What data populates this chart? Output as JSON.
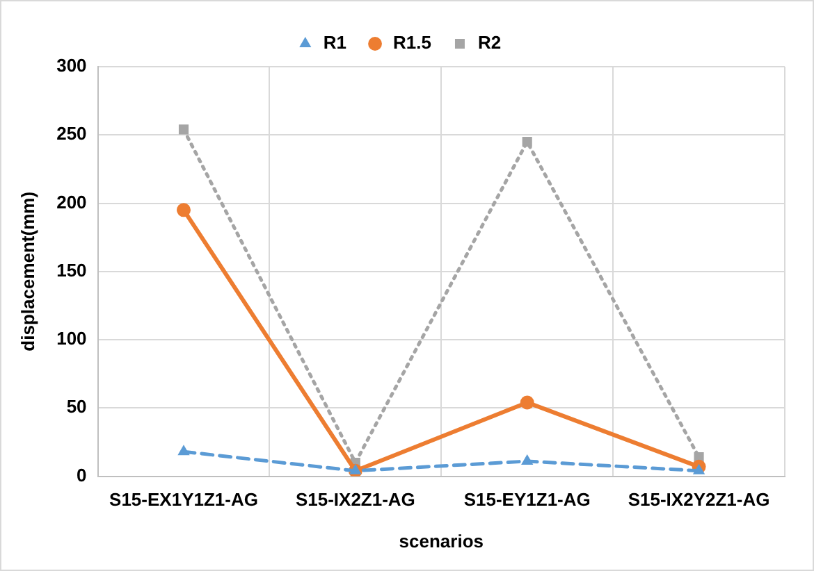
{
  "chart_data": {
    "type": "line",
    "xlabel": "scenarios",
    "ylabel": "displacement(mm)",
    "categories": [
      "S15-EX1Y1Z1-AG",
      "S15-IX2Z1-AG",
      "S15-EY1Z1-AG",
      "S15-IX2Y2Z1-AG"
    ],
    "series": [
      {
        "name": "R1",
        "color": "#5b9bd5",
        "values": [
          18,
          4,
          11,
          4
        ],
        "marker": "triangle",
        "line_style": "dashed"
      },
      {
        "name": "R1.5",
        "color": "#ed7d31",
        "values": [
          195,
          4,
          54,
          7
        ],
        "marker": "circle",
        "line_style": "solid"
      },
      {
        "name": "R2",
        "color": "#a5a5a5",
        "values": [
          254,
          10,
          245,
          14
        ],
        "marker": "square",
        "line_style": "dotted"
      }
    ],
    "ylim": [
      0,
      300
    ],
    "yticks": [
      0,
      50,
      100,
      150,
      200,
      250,
      300
    ],
    "grid": true,
    "legend": "top"
  }
}
